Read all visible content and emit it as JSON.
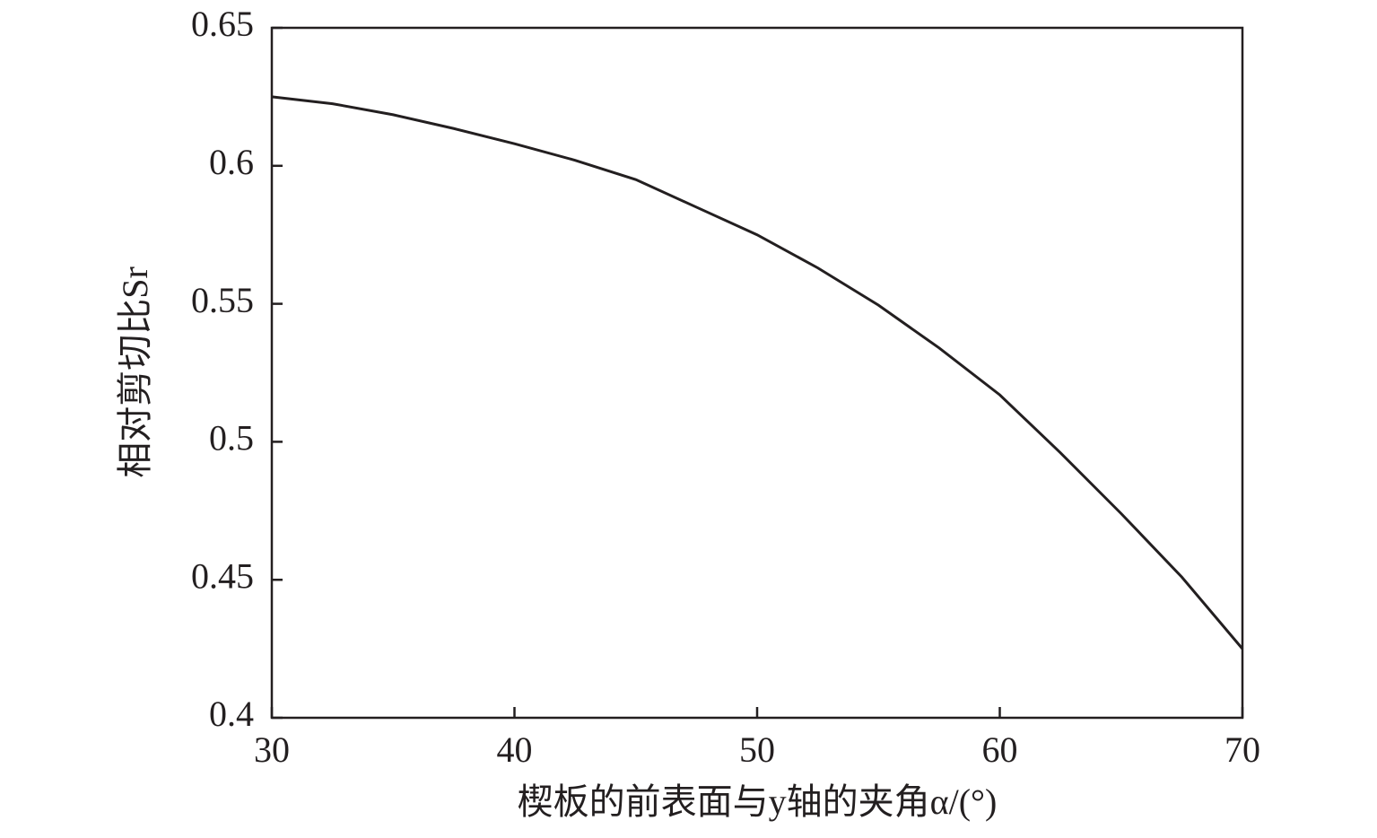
{
  "chart_data": {
    "type": "line",
    "x_label": "楔板的前表面与y轴的夹角α/(°)",
    "y_label": "相对剪切比Sr",
    "x": [
      30,
      32.5,
      35,
      37.5,
      40,
      42.5,
      45,
      47.5,
      50,
      52.5,
      55,
      57.5,
      60,
      62.5,
      65,
      67.5,
      70
    ],
    "series": [
      {
        "color": "#231f20",
        "values": [
          0.625,
          0.6225,
          0.6185,
          0.6135,
          0.608,
          0.602,
          0.595,
          0.585,
          0.575,
          0.563,
          0.5495,
          0.534,
          0.517,
          0.496,
          0.474,
          0.451,
          0.425
        ]
      }
    ],
    "xlim": [
      30,
      70
    ],
    "ylim": [
      0.4,
      0.65
    ],
    "xticks": [
      30,
      40,
      50,
      60,
      70
    ],
    "yticks": [
      0.4,
      0.45,
      0.5,
      0.55,
      0.6,
      0.65
    ]
  }
}
